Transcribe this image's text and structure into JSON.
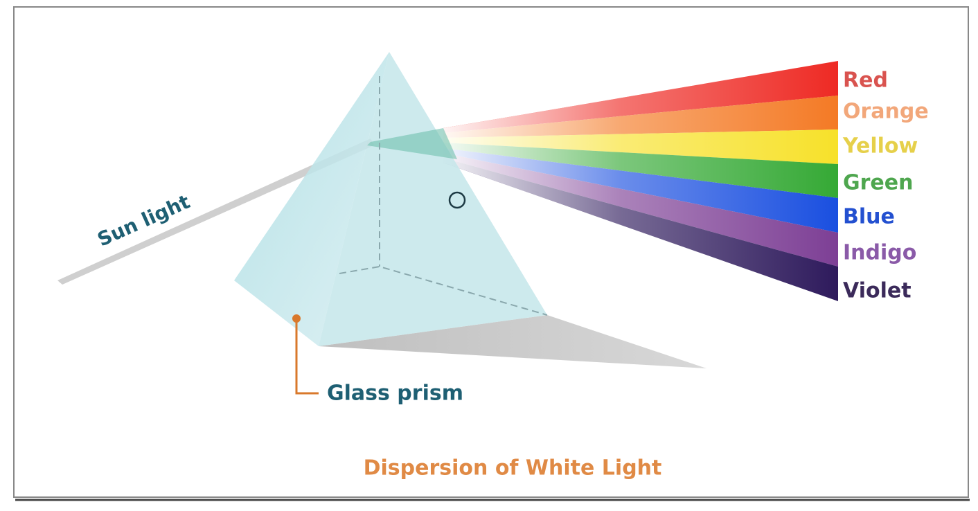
{
  "labels": {
    "sun_light": "Sun light",
    "glass_prism": "Glass prism",
    "caption": "Dispersion of White Light"
  },
  "spectrum": [
    "Red",
    "Orange",
    "Yellow",
    "Green",
    "Blue",
    "Indigo",
    "Violet"
  ]
}
